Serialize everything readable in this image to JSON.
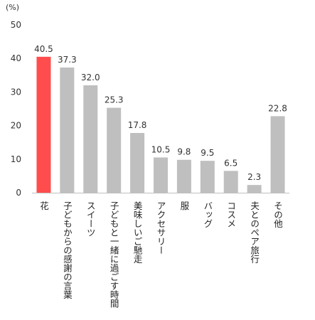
{
  "chart_data": {
    "type": "bar",
    "unit_label": "(%)",
    "categories": [
      "花",
      "子どもからの感謝の言葉",
      "スイーツ",
      "子どもと一緒に過ごす時間",
      "美味しいご馳走",
      "アクセサリー",
      "服",
      "バッグ",
      "コスメ",
      "夫とのペア旅行",
      "その他"
    ],
    "values": [
      40.5,
      37.3,
      32.0,
      25.3,
      17.8,
      10.5,
      9.8,
      9.5,
      6.5,
      2.3,
      22.8
    ],
    "value_labels": [
      "40.5",
      "37.3",
      "32.0",
      "25.3",
      "17.8",
      "10.5",
      "9.8",
      "9.5",
      "6.5",
      "2.3",
      "22.8"
    ],
    "yticks": [
      "0",
      "10",
      "20",
      "30",
      "40",
      "50"
    ],
    "ylim": [
      0,
      50
    ],
    "grid": false,
    "colors": {
      "highlight": "#ff4d4d",
      "default": "#bfbfbf",
      "axis": "#bfbfbf"
    }
  }
}
